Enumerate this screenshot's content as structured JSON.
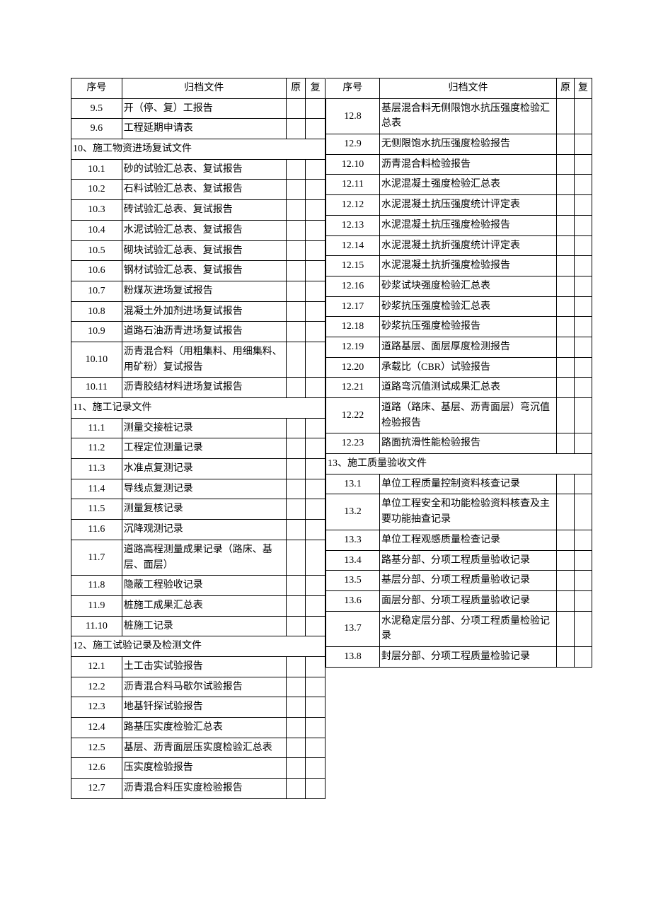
{
  "headers": {
    "idx": "序号",
    "doc": "归档文件",
    "orig": "原",
    "copy": "复"
  },
  "left": [
    {
      "type": "row",
      "idx": "9.5",
      "doc": "开（停、复）工报告"
    },
    {
      "type": "row",
      "idx": "9.6",
      "doc": "工程延期申请表"
    },
    {
      "type": "section",
      "text": "10、施工物资进场复试文件"
    },
    {
      "type": "row",
      "idx": "10.1",
      "doc": "砂的试验汇总表、复试报告"
    },
    {
      "type": "row",
      "idx": "10.2",
      "doc": "石料试验汇总表、复试报告"
    },
    {
      "type": "row",
      "idx": "10.3",
      "doc": "砖试验汇总表、复试报告"
    },
    {
      "type": "row",
      "idx": "10.4",
      "doc": "水泥试验汇总表、复试报告"
    },
    {
      "type": "row",
      "idx": "10.5",
      "doc": "砌块试验汇总表、复试报告"
    },
    {
      "type": "row",
      "idx": "10.6",
      "doc": "钢材试验汇总表、复试报告"
    },
    {
      "type": "row",
      "idx": "10.7",
      "doc": "粉煤灰进场复试报告"
    },
    {
      "type": "row",
      "idx": "10.8",
      "doc": "混凝土外加剂进场复试报告"
    },
    {
      "type": "row",
      "idx": "10.9",
      "doc": "道路石油沥青进场复试报告"
    },
    {
      "type": "row",
      "idx": "10.10",
      "doc": "沥青混合料（用粗集料、用细集料、用矿粉）复试报告",
      "rowspan": 2
    },
    {
      "type": "cont"
    },
    {
      "type": "row",
      "idx": "10.11",
      "doc": "沥青胶结材料进场复试报告"
    },
    {
      "type": "section",
      "text": "11、施工记录文件"
    },
    {
      "type": "row",
      "idx": "11.1",
      "doc": "测量交接桩记录"
    },
    {
      "type": "row",
      "idx": "11.2",
      "doc": "工程定位测量记录"
    },
    {
      "type": "row",
      "idx": "11.3",
      "doc": "水准点复测记录"
    },
    {
      "type": "row",
      "idx": "11.4",
      "doc": "导线点复测记录"
    },
    {
      "type": "row",
      "idx": "11.5",
      "doc": "测量复核记录"
    },
    {
      "type": "row",
      "idx": "11.6",
      "doc": "沉降观测记录"
    },
    {
      "type": "row",
      "idx": "11.7",
      "doc": "道路高程测量成果记录（路床、基层、面层）",
      "rowspan": 2
    },
    {
      "type": "cont"
    },
    {
      "type": "row",
      "idx": "11.8",
      "doc": "隐蔽工程验收记录"
    },
    {
      "type": "row",
      "idx": "11.9",
      "doc": "桩施工成果汇总表"
    },
    {
      "type": "row",
      "idx": "11.10",
      "doc": "桩施工记录"
    },
    {
      "type": "section",
      "text": "12、施工试验记录及检测文件"
    },
    {
      "type": "row",
      "idx": "12.1",
      "doc": "土工击实试验报告"
    },
    {
      "type": "row",
      "idx": "12.2",
      "doc": "沥青混合料马歇尔试验报告"
    },
    {
      "type": "row",
      "idx": "12.3",
      "doc": "地基钎探试验报告"
    },
    {
      "type": "row",
      "idx": "12.4",
      "doc": "路基压实度检验汇总表"
    },
    {
      "type": "row",
      "idx": "12.5",
      "doc": "基层、沥青面层压实度检验汇总表",
      "rowspan": 2
    },
    {
      "type": "cont"
    },
    {
      "type": "row",
      "idx": "12.6",
      "doc": "压实度检验报告"
    },
    {
      "type": "row",
      "idx": "12.7",
      "doc": "沥青混合料压实度检验报告"
    }
  ],
  "right": [
    {
      "type": "row",
      "idx": "12.8",
      "doc": "基层混合料无侧限饱水抗压强度检验汇总表",
      "rowspan": 2
    },
    {
      "type": "cont"
    },
    {
      "type": "row",
      "idx": "12.9",
      "doc": "无侧限饱水抗压强度检验报告"
    },
    {
      "type": "row",
      "idx": "12.10",
      "doc": "沥青混合料检验报告"
    },
    {
      "type": "row",
      "idx": "12.11",
      "doc": "水泥混凝土强度检验汇总表"
    },
    {
      "type": "row",
      "idx": "12.12",
      "doc": "水泥混凝土抗压强度统计评定表",
      "rowspan": 2
    },
    {
      "type": "cont"
    },
    {
      "type": "row",
      "idx": "12.13",
      "doc": "水泥混凝土抗压强度检验报告"
    },
    {
      "type": "row",
      "idx": "12.14",
      "doc": "水泥混凝土抗折强度统计评定表",
      "rowspan": 2
    },
    {
      "type": "cont"
    },
    {
      "type": "row",
      "idx": "12.15",
      "doc": "水泥混凝土抗折强度检验报告"
    },
    {
      "type": "row",
      "idx": "12.16",
      "doc": "砂浆试块强度检验汇总表"
    },
    {
      "type": "row",
      "idx": "12.17",
      "doc": "砂浆抗压强度检验汇总表"
    },
    {
      "type": "row",
      "idx": "12.18",
      "doc": "砂浆抗压强度检验报告"
    },
    {
      "type": "row",
      "idx": "12.19",
      "doc": "道路基层、面层厚度检测报告"
    },
    {
      "type": "row",
      "idx": "12.20",
      "doc": "承载比（CBR）试验报告"
    },
    {
      "type": "row",
      "idx": "12.21",
      "doc": "道路弯沉值测试成果汇总表"
    },
    {
      "type": "row",
      "idx": "12.22",
      "doc": "道路（路床、基层、沥青面层）弯沉值检验报告",
      "rowspan": 2
    },
    {
      "type": "cont"
    },
    {
      "type": "row",
      "idx": "12.23",
      "doc": "路面抗滑性能检验报告"
    },
    {
      "type": "section",
      "text": "13、施工质量验收文件"
    },
    {
      "type": "row",
      "idx": "13.1",
      "doc": "单位工程质量控制资料核查记录",
      "rowspan": 2
    },
    {
      "type": "cont"
    },
    {
      "type": "row",
      "idx": "13.2",
      "doc": "单位工程安全和功能检验资料核查及主要功能抽查记录",
      "rowspan": 2
    },
    {
      "type": "cont"
    },
    {
      "type": "row",
      "idx": "13.3",
      "doc": "单位工程观感质量检查记录"
    },
    {
      "type": "row",
      "idx": "13.4",
      "doc": "路基分部、分项工程质量验收记录",
      "rowspan": 2
    },
    {
      "type": "cont"
    },
    {
      "type": "row",
      "idx": "13.5",
      "doc": "基层分部、分项工程质量验收记录",
      "rowspan": 2
    },
    {
      "type": "cont"
    },
    {
      "type": "row",
      "idx": "13.6",
      "doc": "面层分部、分项工程质量验收记录",
      "rowspan": 2
    },
    {
      "type": "cont"
    },
    {
      "type": "row",
      "idx": "13.7",
      "doc": "水泥稳定层分部、分项工程质量检验记录",
      "rowspan": 2
    },
    {
      "type": "cont"
    },
    {
      "type": "row",
      "idx": "13.8",
      "doc": "封层分部、分项工程质量检验记录",
      "rowspan": 2
    },
    {
      "type": "cont"
    }
  ]
}
